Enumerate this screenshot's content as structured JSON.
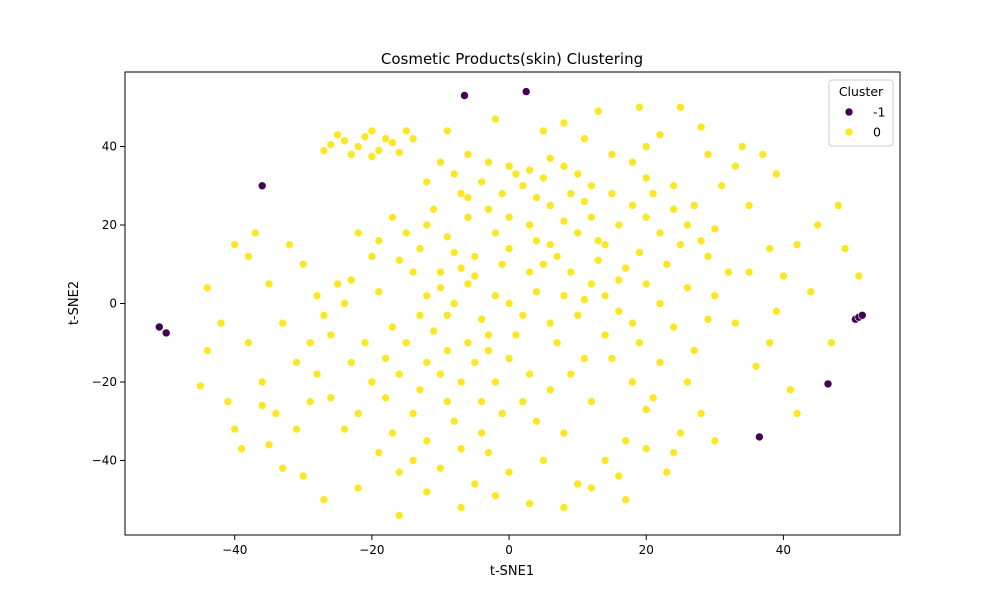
{
  "chart_data": {
    "type": "scatter",
    "title": "Cosmetic Products(skin) Clustering",
    "xlabel": "t-SNE1",
    "ylabel": "t-SNE2",
    "xlim": [
      -56,
      57
    ],
    "ylim": [
      -59,
      59
    ],
    "xticks": [
      -40,
      -20,
      0,
      20,
      40
    ],
    "yticks": [
      -40,
      -20,
      0,
      20,
      40
    ],
    "grid": false,
    "legend": {
      "title": "Cluster",
      "placement": "top-right"
    },
    "series": [
      {
        "name": "-1",
        "color": "#440154",
        "points": [
          [
            -6.5,
            53
          ],
          [
            2.5,
            54
          ],
          [
            -36,
            30
          ],
          [
            -51,
            -6
          ],
          [
            -50,
            -7.5
          ],
          [
            50.5,
            -4
          ],
          [
            51,
            -3.5
          ],
          [
            51.5,
            -3
          ],
          [
            46.5,
            -20.5
          ],
          [
            36.5,
            -34
          ]
        ]
      },
      {
        "name": "0",
        "color": "#fde725",
        "points": [
          [
            -20,
            44
          ],
          [
            -25,
            43
          ],
          [
            -18,
            42
          ],
          [
            -22,
            40
          ],
          [
            -26,
            40.5
          ],
          [
            -19,
            39
          ],
          [
            -23,
            38
          ],
          [
            -17,
            41
          ],
          [
            -24,
            41.5
          ],
          [
            -21,
            42.5
          ],
          [
            -16,
            38.5
          ],
          [
            -27,
            39
          ],
          [
            -15,
            44
          ],
          [
            -14,
            42
          ],
          [
            -20,
            37.5
          ],
          [
            -6,
            38
          ],
          [
            -3,
            36
          ],
          [
            0,
            35
          ],
          [
            3,
            34
          ],
          [
            6,
            37
          ],
          [
            -8,
            33
          ],
          [
            -4,
            31
          ],
          [
            2,
            30
          ],
          [
            5,
            32
          ],
          [
            8,
            35
          ],
          [
            -10,
            36
          ],
          [
            10,
            33
          ],
          [
            -1,
            28
          ],
          [
            4,
            27
          ],
          [
            -6,
            27
          ],
          [
            1,
            33
          ],
          [
            12,
            30
          ],
          [
            -12,
            31
          ],
          [
            15,
            28
          ],
          [
            18,
            25
          ],
          [
            20,
            22
          ],
          [
            22,
            18
          ],
          [
            16,
            20
          ],
          [
            14,
            15
          ],
          [
            24,
            24
          ],
          [
            26,
            20
          ],
          [
            21,
            28
          ],
          [
            19,
            13
          ],
          [
            25,
            15
          ],
          [
            12,
            22
          ],
          [
            10,
            18
          ],
          [
            23,
            10
          ],
          [
            17,
            9
          ],
          [
            28,
            16
          ],
          [
            27,
            25
          ],
          [
            13,
            11
          ],
          [
            8,
            21
          ],
          [
            30,
            19
          ],
          [
            29,
            12
          ],
          [
            11,
            26
          ],
          [
            20,
            32
          ],
          [
            18,
            36
          ],
          [
            15,
            38
          ],
          [
            24,
            30
          ],
          [
            -12,
            -15
          ],
          [
            -10,
            -18
          ],
          [
            -7,
            -20
          ],
          [
            -5,
            -15
          ],
          [
            -13,
            -22
          ],
          [
            -9,
            -25
          ],
          [
            -15,
            -10
          ],
          [
            -6,
            -10
          ],
          [
            -11,
            -7
          ],
          [
            -3,
            -12
          ],
          [
            -8,
            -30
          ],
          [
            -14,
            -28
          ],
          [
            -4,
            -25
          ],
          [
            -2,
            -20
          ],
          [
            -16,
            -18
          ],
          [
            -18,
            -24
          ],
          [
            -20,
            -20
          ],
          [
            -22,
            -28
          ],
          [
            -17,
            -33
          ],
          [
            -12,
            -35
          ],
          [
            -7,
            -37
          ],
          [
            -14,
            -40
          ],
          [
            -16,
            -43
          ],
          [
            -10,
            -42
          ],
          [
            -19,
            -38
          ],
          [
            -24,
            -32
          ],
          [
            -26,
            -24
          ],
          [
            -23,
            -15
          ],
          [
            -28,
            -18
          ],
          [
            -21,
            -10
          ],
          [
            0,
            0
          ],
          [
            2,
            -3
          ],
          [
            -2,
            2
          ],
          [
            4,
            3
          ],
          [
            -4,
            -4
          ],
          [
            6,
            -5
          ],
          [
            -6,
            5
          ],
          [
            3,
            8
          ],
          [
            -3,
            -8
          ],
          [
            8,
            2
          ],
          [
            -8,
            0
          ],
          [
            1,
            -8
          ],
          [
            5,
            10
          ],
          [
            -5,
            12
          ],
          [
            10,
            -3
          ],
          [
            -10,
            4
          ],
          [
            7,
            -10
          ],
          [
            -7,
            9
          ],
          [
            12,
            5
          ],
          [
            -12,
            2
          ],
          [
            9,
            8
          ],
          [
            -9,
            -3
          ],
          [
            0,
            14
          ],
          [
            0,
            -14
          ],
          [
            14,
            -8
          ],
          [
            -14,
            8
          ],
          [
            3,
            -18
          ],
          [
            6,
            15
          ],
          [
            -2,
            18
          ],
          [
            11,
            -14
          ],
          [
            -15,
            18
          ],
          [
            -12,
            20
          ],
          [
            -17,
            22
          ],
          [
            -9,
            17
          ],
          [
            -13,
            14
          ],
          [
            -19,
            16
          ],
          [
            -11,
            24
          ],
          [
            -6,
            22
          ],
          [
            -16,
            11
          ],
          [
            -8,
            13
          ],
          [
            -20,
            12
          ],
          [
            -22,
            18
          ],
          [
            -30,
            10
          ],
          [
            -28,
            2
          ],
          [
            -33,
            -5
          ],
          [
            -29,
            -10
          ],
          [
            -35,
            5
          ],
          [
            -32,
            15
          ],
          [
            -27,
            -3
          ],
          [
            -31,
            -15
          ],
          [
            -36,
            -20
          ],
          [
            -34,
            -28
          ],
          [
            -38,
            -10
          ],
          [
            -25,
            5
          ],
          [
            -38,
            12
          ],
          [
            -37,
            18
          ],
          [
            -40,
            15
          ],
          [
            -42,
            -5
          ],
          [
            -45,
            -21
          ],
          [
            -44,
            4
          ],
          [
            -40,
            -32
          ],
          [
            -39,
            -37
          ],
          [
            -33,
            -42
          ],
          [
            -27,
            -50
          ],
          [
            -16,
            -54
          ],
          [
            -7,
            -52
          ],
          [
            3,
            -51
          ],
          [
            8,
            -52
          ],
          [
            17,
            -50
          ],
          [
            23,
            -43
          ],
          [
            30,
            2
          ],
          [
            33,
            -5
          ],
          [
            35,
            8
          ],
          [
            38,
            14
          ],
          [
            40,
            7
          ],
          [
            42,
            15
          ],
          [
            45,
            20
          ],
          [
            48,
            25
          ],
          [
            49,
            14
          ],
          [
            51,
            7
          ],
          [
            38,
            -10
          ],
          [
            36,
            -16
          ],
          [
            41,
            -22
          ],
          [
            42,
            -28
          ],
          [
            47,
            -10
          ],
          [
            39,
            -2
          ],
          [
            44,
            3
          ],
          [
            26,
            -20
          ],
          [
            28,
            -28
          ],
          [
            30,
            -35
          ],
          [
            24,
            -38
          ],
          [
            20,
            -27
          ],
          [
            17,
            -35
          ],
          [
            14,
            -40
          ],
          [
            22,
            -15
          ],
          [
            18,
            -20
          ],
          [
            12,
            -25
          ],
          [
            8,
            -33
          ],
          [
            5,
            -40
          ],
          [
            16,
            -44
          ],
          [
            10,
            -46
          ],
          [
            0,
            -43
          ],
          [
            -5,
            -46
          ],
          [
            -3,
            -38
          ],
          [
            -2,
            47
          ],
          [
            8,
            46
          ],
          [
            13,
            49
          ],
          [
            19,
            50
          ],
          [
            25,
            50
          ],
          [
            28,
            45
          ],
          [
            34,
            40
          ],
          [
            37,
            38
          ],
          [
            39,
            33
          ],
          [
            11,
            42
          ],
          [
            5,
            44
          ],
          [
            -9,
            44
          ],
          [
            20,
            40
          ],
          [
            22,
            43
          ],
          [
            29,
            38
          ],
          [
            33,
            35
          ],
          [
            35,
            25
          ],
          [
            31,
            30
          ],
          [
            14,
            2
          ],
          [
            18,
            -5
          ],
          [
            22,
            0
          ],
          [
            20,
            5
          ],
          [
            16,
            -2
          ],
          [
            24,
            -6
          ],
          [
            26,
            4
          ],
          [
            19,
            -10
          ],
          [
            15,
            -14
          ],
          [
            27,
            -12
          ],
          [
            29,
            -4
          ],
          [
            32,
            8
          ],
          [
            21,
            -24
          ],
          [
            -1,
            -28
          ],
          [
            2,
            -25
          ],
          [
            4,
            -30
          ],
          [
            -4,
            -33
          ],
          [
            6,
            -22
          ],
          [
            9,
            -18
          ],
          [
            -9,
            -12
          ],
          [
            -13,
            -3
          ],
          [
            -17,
            -6
          ],
          [
            -19,
            3
          ],
          [
            -23,
            6
          ],
          [
            -26,
            -8
          ],
          [
            -24,
            0
          ],
          [
            -18,
            -14
          ],
          [
            -29,
            -25
          ],
          [
            -31,
            -32
          ],
          [
            -36,
            -26
          ],
          [
            3,
            20
          ],
          [
            6,
            25
          ],
          [
            -3,
            24
          ],
          [
            0,
            22
          ],
          [
            9,
            28
          ],
          [
            -7,
            28
          ],
          [
            -10,
            8
          ],
          [
            -5,
            7
          ],
          [
            7,
            12
          ],
          [
            13,
            16
          ],
          [
            16,
            6
          ],
          [
            11,
            1
          ],
          [
            4,
            16
          ],
          [
            -1,
            10
          ],
          [
            -44,
            -12
          ],
          [
            -41,
            -25
          ],
          [
            -35,
            -36
          ],
          [
            -30,
            -44
          ],
          [
            -22,
            -47
          ],
          [
            -12,
            -48
          ],
          [
            -2,
            -49
          ],
          [
            12,
            -47
          ],
          [
            20,
            -37
          ],
          [
            25,
            -33
          ]
        ]
      }
    ]
  }
}
